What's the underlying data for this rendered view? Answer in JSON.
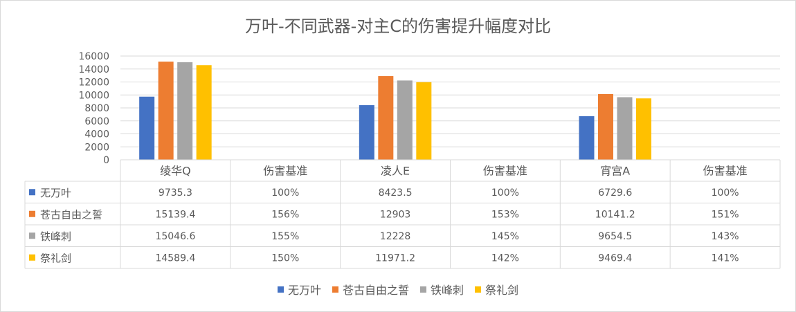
{
  "chart_data": {
    "type": "bar",
    "title": "万叶-不同武器-对主C的伤害提升幅度对比",
    "ylim": [
      0,
      16000
    ],
    "yticks": [
      0,
      2000,
      4000,
      6000,
      8000,
      10000,
      12000,
      14000,
      16000
    ],
    "grid": true,
    "legend_position": "bottom",
    "categories": [
      "绫华Q",
      "伤害基准",
      "凌人E",
      "伤害基准",
      "宵宫A",
      "伤害基准"
    ],
    "series": [
      {
        "name": "无万叶",
        "color": "#4472C4",
        "values": [
          9735.3,
          null,
          8423.5,
          null,
          6729.6,
          null
        ],
        "labels": [
          "9735.3",
          "100%",
          "8423.5",
          "100%",
          "6729.6",
          "100%"
        ]
      },
      {
        "name": "苍古自由之誓",
        "color": "#ED7D31",
        "values": [
          15139.4,
          null,
          12903,
          null,
          10141.2,
          null
        ],
        "labels": [
          "15139.4",
          "156%",
          "12903",
          "153%",
          "10141.2",
          "151%"
        ]
      },
      {
        "name": "铁峰刺",
        "color": "#A5A5A5",
        "values": [
          15046.6,
          null,
          12228,
          null,
          9654.5,
          null
        ],
        "labels": [
          "15046.6",
          "155%",
          "12228",
          "145%",
          "9654.5",
          "143%"
        ]
      },
      {
        "name": "祭礼剑",
        "color": "#FFC000",
        "values": [
          14589.4,
          null,
          11971.2,
          null,
          9469.4,
          null
        ],
        "labels": [
          "14589.4",
          "150%",
          "11971.2",
          "142%",
          "9469.4",
          "141%"
        ]
      }
    ]
  }
}
